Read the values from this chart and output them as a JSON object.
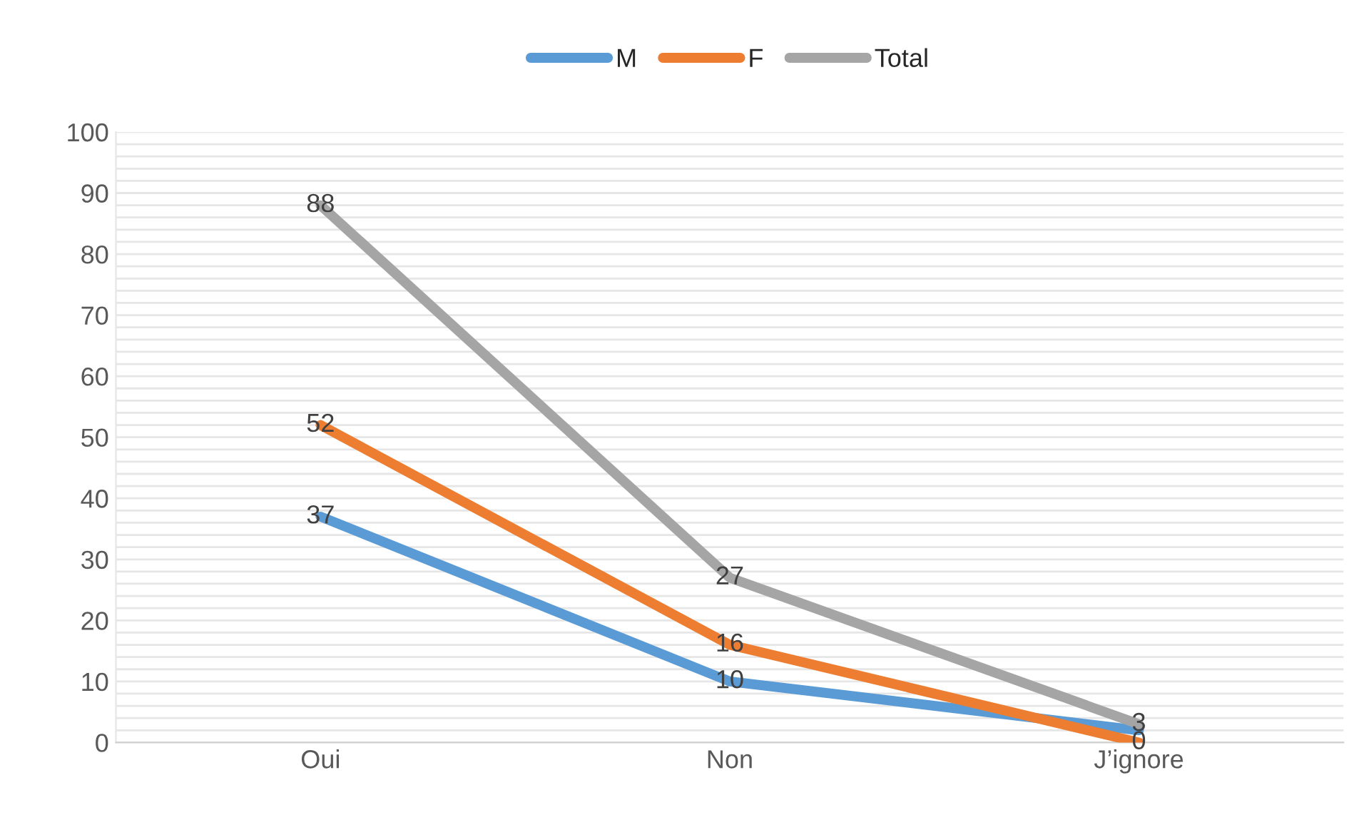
{
  "chart_data": {
    "type": "line",
    "categories": [
      "Oui",
      "Non",
      "J’ignore"
    ],
    "series": [
      {
        "name": "M",
        "color": "#5b9bd5",
        "values": [
          37,
          10,
          2
        ],
        "value_labels": [
          "37",
          "10",
          null
        ]
      },
      {
        "name": "F",
        "color": "#ed7d31",
        "values": [
          52,
          16,
          0
        ],
        "value_labels": [
          "52",
          "16",
          "0"
        ]
      },
      {
        "name": "Total",
        "color": "#a5a5a5",
        "values": [
          88,
          27,
          3
        ],
        "value_labels": [
          "88",
          "27",
          "3"
        ]
      }
    ],
    "ylim": [
      0,
      100
    ],
    "yticks": [
      0,
      {
        "value": 2,
        "label": null
      },
      {
        "value": 4,
        "label": null
      },
      {
        "value": 6,
        "label": null
      },
      {
        "value": 8,
        "label": null
      },
      10,
      {
        "value": 12,
        "label": null
      },
      {
        "value": 14,
        "label": null
      },
      {
        "value": 16,
        "label": null
      },
      {
        "value": 18,
        "label": null
      },
      20,
      {
        "value": 22,
        "label": null
      },
      {
        "value": 24,
        "label": null
      },
      {
        "value": 26,
        "label": null
      },
      {
        "value": 28,
        "label": null
      },
      30,
      {
        "value": 32,
        "label": null
      },
      {
        "value": 34,
        "label": null
      },
      {
        "value": 36,
        "label": null
      },
      {
        "value": 38,
        "label": null
      },
      40,
      {
        "value": 42,
        "label": null
      },
      {
        "value": 44,
        "label": null
      },
      {
        "value": 46,
        "label": null
      },
      {
        "value": 48,
        "label": null
      },
      50,
      {
        "value": 52,
        "label": null
      },
      {
        "value": 54,
        "label": null
      },
      {
        "value": 56,
        "label": null
      },
      {
        "value": 58,
        "label": null
      },
      60,
      {
        "value": 62,
        "label": null
      },
      {
        "value": 64,
        "label": null
      },
      {
        "value": 66,
        "label": null
      },
      {
        "value": 68,
        "label": null
      },
      70,
      {
        "value": 72,
        "label": null
      },
      {
        "value": 74,
        "label": null
      },
      {
        "value": 76,
        "label": null
      },
      {
        "value": 78,
        "label": null
      },
      80,
      {
        "value": 82,
        "label": null
      },
      {
        "value": 84,
        "label": null
      },
      {
        "value": 86,
        "label": null
      },
      {
        "value": 88,
        "label": null
      },
      90,
      {
        "value": 92,
        "label": null
      },
      {
        "value": 94,
        "label": null
      },
      {
        "value": 96,
        "label": null
      },
      {
        "value": 98,
        "label": null
      },
      100
    ],
    "grid": "y",
    "legend": "top",
    "marker": "none",
    "line_style": "solid"
  }
}
